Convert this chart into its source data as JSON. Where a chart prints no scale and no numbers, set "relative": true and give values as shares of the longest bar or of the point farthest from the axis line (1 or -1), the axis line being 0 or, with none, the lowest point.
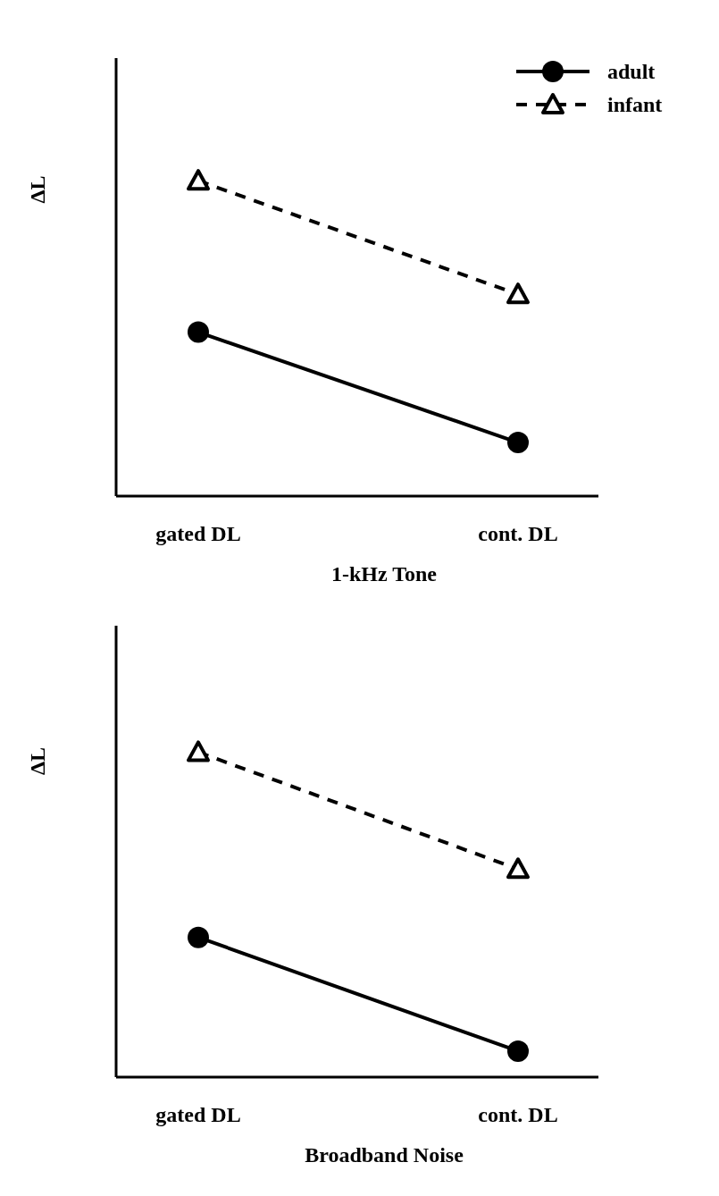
{
  "chart_data": [
    {
      "type": "line",
      "relative": true,
      "ylabel": "ΔL",
      "xlabel": "1-kHz Tone",
      "categories": [
        "gated DL",
        "cont. DL"
      ],
      "legend": "top right",
      "series": [
        {
          "name": "adult",
          "color": "#000000",
          "values": [
            0.52,
            0.17
          ],
          "marker": "circle",
          "line_style": "solid"
        },
        {
          "name": "infant",
          "color": "#000000",
          "values": [
            1,
            0.64
          ],
          "marker": "triangle",
          "line_style": "dashed"
        }
      ]
    },
    {
      "type": "line",
      "relative": true,
      "ylabel": "ΔL",
      "xlabel": "Broadband Noise",
      "categories": [
        "gated DL",
        "cont. DL"
      ],
      "legend": false,
      "series": [
        {
          "color": "#000000",
          "values": [
            0.43,
            0.08
          ],
          "marker": "circle",
          "line_style": "solid"
        },
        {
          "color": "#000000",
          "values": [
            1,
            0.64
          ],
          "marker": "triangle",
          "line_style": "dashed"
        }
      ]
    }
  ]
}
